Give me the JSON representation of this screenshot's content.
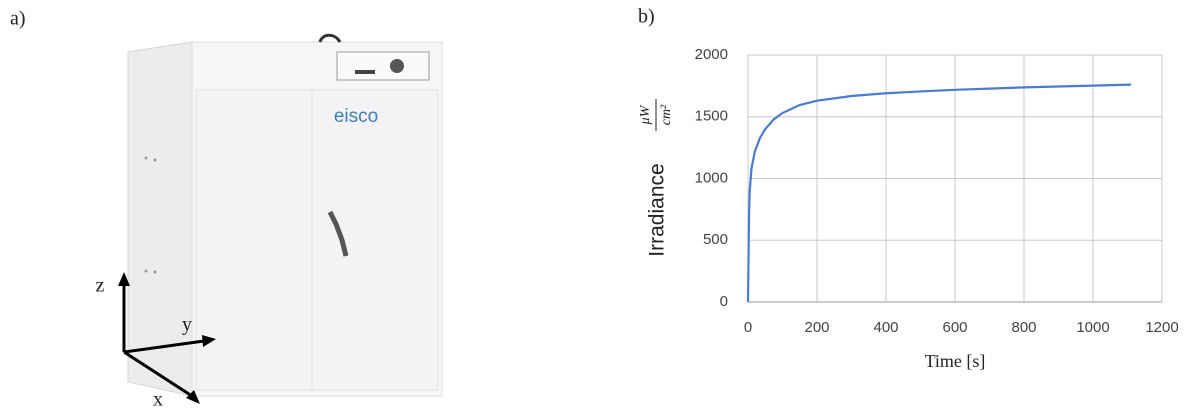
{
  "photo": {
    "label": "a)",
    "brand": "eisco",
    "axes": {
      "z": "z",
      "y": "y",
      "x": "x"
    }
  },
  "chart_label": "b)",
  "chart_data": {
    "type": "line",
    "xlabel": "Time [s]",
    "ylabel": "Irradiance",
    "ylabel_units": {
      "numerator": "μW",
      "denominator": "cm²"
    },
    "x": [
      0,
      3,
      5,
      10,
      20,
      35,
      50,
      75,
      100,
      150,
      200,
      300,
      400,
      500,
      600,
      700,
      800,
      900,
      1000,
      1110
    ],
    "values": [
      0,
      700,
      900,
      1080,
      1220,
      1330,
      1400,
      1480,
      1530,
      1595,
      1630,
      1668,
      1690,
      1705,
      1718,
      1728,
      1738,
      1745,
      1752,
      1760
    ],
    "color": "#4a7bd0",
    "xlim": [
      0,
      1200
    ],
    "ylim": [
      0,
      2000
    ],
    "xticks": [
      0,
      200,
      400,
      600,
      800,
      1000,
      1200
    ],
    "yticks": [
      0,
      500,
      1000,
      1500,
      2000
    ],
    "grid": true
  }
}
